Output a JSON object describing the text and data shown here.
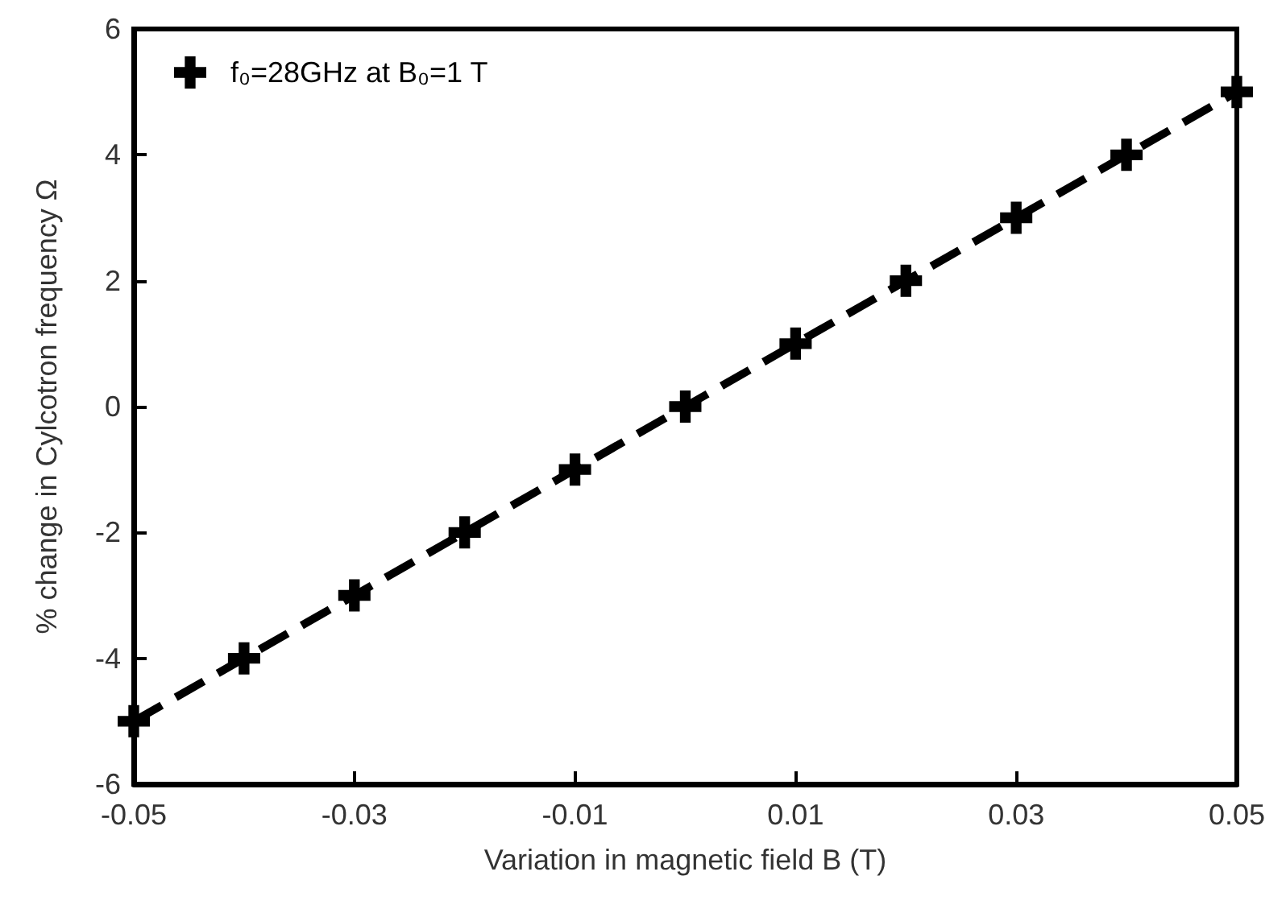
{
  "chart_data": {
    "type": "line",
    "xlabel": "Variation in magnetic field B (T)",
    "ylabel": "% change in Cylcotron frequency Ω",
    "x": [
      -0.05,
      -0.04,
      -0.03,
      -0.02,
      -0.01,
      0,
      0.01,
      0.02,
      0.03,
      0.04,
      0.05
    ],
    "series": [
      {
        "name": "f₀=28GHz at B₀=1 T",
        "color": "#000000",
        "values": [
          -5,
          -4,
          -3,
          -2,
          -1,
          0,
          1,
          2,
          3,
          4,
          5
        ]
      }
    ],
    "xlim": [
      -0.05,
      0.05
    ],
    "xticks": [
      -0.05,
      -0.03,
      -0.01,
      0.01,
      0.03,
      0.05
    ],
    "ylim": [
      -6,
      6
    ],
    "yticks": [
      -6,
      -4,
      -2,
      0,
      2,
      4,
      6
    ],
    "grid": false,
    "legend": "top left",
    "marker": "cross",
    "line_style": "dashed"
  }
}
